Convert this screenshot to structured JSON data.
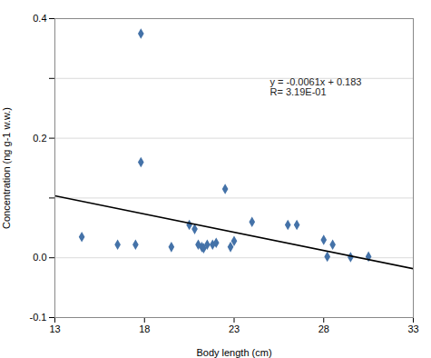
{
  "chart_data": {
    "type": "scatter",
    "xlabel": "Body length (cm)",
    "ylabel": "Concentration (ng g-1 w.w.)",
    "series": [
      {
        "type": "scatter",
        "color": "#4472a8",
        "marker": "diamond",
        "x": [
          14.5,
          17.8,
          17.5,
          19.5,
          20.5,
          20.8,
          21.0,
          21.2,
          21.3,
          21.5,
          21.8,
          22.0,
          22.5,
          22.8,
          23.0,
          24.0,
          26.0,
          26.5,
          28.0,
          28.2,
          28.5,
          29.5,
          30.5,
          17.8,
          16.5
        ],
        "values": [
          0.035,
          0.375,
          0.022,
          0.018,
          0.055,
          0.048,
          0.022,
          0.018,
          0.016,
          0.022,
          0.022,
          0.025,
          0.115,
          0.018,
          0.028,
          0.06,
          0.055,
          0.055,
          0.03,
          0.002,
          0.022,
          0.001,
          0.002,
          0.16,
          0.022
        ]
      },
      {
        "type": "line",
        "color": "#000000",
        "line_style": "solid",
        "x": [
          13,
          33
        ],
        "values": [
          0.1037,
          -0.0183
        ]
      }
    ],
    "annotations": [
      "y = -0.0061x + 0.183",
      "R= 3.19E-01"
    ],
    "xlim": [
      13,
      33
    ],
    "xticks": [
      13,
      18,
      23,
      28,
      33
    ],
    "ylim": [
      -0.1,
      0.4
    ],
    "yticks": [
      -0.1,
      {
        "value": 0,
        "label": "0.0"
      },
      {
        "value": 0.1,
        "label": ""
      },
      0.2,
      {
        "value": 0.3,
        "label": ""
      },
      0.4
    ],
    "grid": "y"
  }
}
